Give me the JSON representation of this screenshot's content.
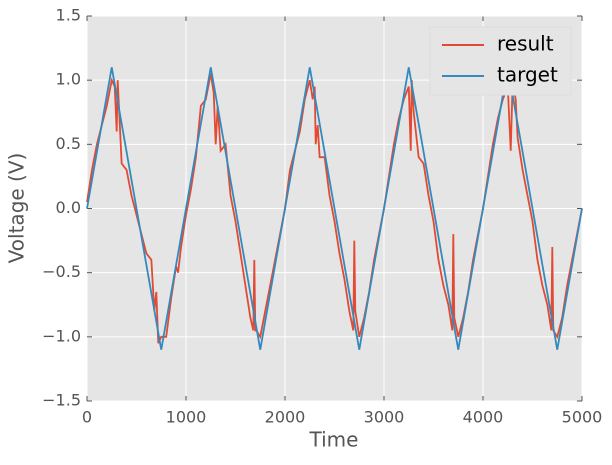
{
  "chart_data": {
    "type": "line",
    "xlabel": "Time",
    "ylabel": "Voltage (V)",
    "xlim": [
      0,
      5000
    ],
    "ylim": [
      -1.5,
      1.5
    ],
    "xticks": [
      0,
      1000,
      2000,
      3000,
      4000,
      5000
    ],
    "yticks": [
      {
        "value": -1.5,
        "label": "−1.5"
      },
      {
        "value": -1.0,
        "label": "−1.0"
      },
      {
        "value": -0.5,
        "label": "−0.5"
      },
      {
        "value": 0.0,
        "label": "0.0"
      },
      {
        "value": 0.5,
        "label": "0.5"
      },
      {
        "value": 1.0,
        "label": "1.0"
      },
      {
        "value": 1.5,
        "label": "1.5"
      }
    ],
    "grid": true,
    "legend": "upper right",
    "series": [
      {
        "name": "result",
        "color": "#e24a33",
        "x": [
          0,
          50,
          100,
          150,
          200,
          250,
          280,
          300,
          310,
          350,
          400,
          450,
          500,
          550,
          600,
          650,
          680,
          700,
          720,
          750,
          800,
          850,
          900,
          920,
          950,
          1000,
          1050,
          1100,
          1150,
          1200,
          1250,
          1280,
          1300,
          1320,
          1350,
          1400,
          1450,
          1500,
          1550,
          1600,
          1650,
          1680,
          1690,
          1700,
          1710,
          1750,
          1800,
          1850,
          1900,
          1950,
          2000,
          2050,
          2100,
          2150,
          2200,
          2250,
          2280,
          2300,
          2310,
          2330,
          2350,
          2400,
          2450,
          2500,
          2550,
          2600,
          2650,
          2690,
          2700,
          2710,
          2750,
          2800,
          2850,
          2900,
          2950,
          3000,
          3050,
          3100,
          3150,
          3200,
          3250,
          3270,
          3280,
          3300,
          3350,
          3400,
          3450,
          3500,
          3550,
          3600,
          3650,
          3690,
          3700,
          3710,
          3750,
          3800,
          3850,
          3900,
          3950,
          4000,
          4050,
          4100,
          4150,
          4200,
          4250,
          4280,
          4300,
          4330,
          4350,
          4400,
          4450,
          4500,
          4550,
          4600,
          4650,
          4690,
          4700,
          4710,
          4750,
          4800,
          4850,
          4900,
          4950,
          5000
        ],
        "values": [
          0.05,
          0.3,
          0.5,
          0.65,
          0.8,
          1.0,
          0.95,
          0.6,
          1.0,
          0.35,
          0.3,
          0.1,
          -0.05,
          -0.2,
          -0.35,
          -0.4,
          -0.8,
          -0.65,
          -1.05,
          -1.0,
          -1.0,
          -0.7,
          -0.45,
          -0.5,
          -0.3,
          -0.05,
          0.15,
          0.4,
          0.8,
          0.85,
          1.05,
          0.9,
          0.5,
          0.8,
          0.45,
          0.5,
          0.1,
          -0.1,
          -0.35,
          -0.6,
          -0.85,
          -0.95,
          -0.4,
          -0.95,
          -0.95,
          -1.0,
          -0.8,
          -0.6,
          -0.4,
          -0.2,
          0.0,
          0.3,
          0.45,
          0.6,
          0.85,
          1.0,
          0.85,
          0.95,
          0.5,
          0.65,
          0.4,
          0.4,
          0.1,
          -0.1,
          -0.35,
          -0.55,
          -0.8,
          -0.95,
          -0.25,
          -0.8,
          -1.0,
          -0.85,
          -0.65,
          -0.4,
          -0.2,
          0.0,
          0.25,
          0.5,
          0.7,
          0.85,
          0.95,
          0.45,
          1.0,
          0.75,
          0.4,
          0.35,
          0.1,
          -0.1,
          -0.4,
          -0.6,
          -0.75,
          -0.95,
          -0.2,
          -0.85,
          -1.0,
          -0.85,
          -0.65,
          -0.4,
          -0.2,
          0.0,
          0.25,
          0.5,
          0.7,
          0.85,
          0.95,
          0.45,
          1.0,
          0.85,
          0.55,
          0.3,
          0.1,
          -0.1,
          -0.4,
          -0.6,
          -0.75,
          -0.95,
          -0.3,
          -0.95,
          -1.0,
          -0.85,
          -0.6,
          -0.4,
          -0.2,
          0.0
        ]
      },
      {
        "name": "target",
        "color": "#348abd",
        "x": [
          0,
          250,
          750,
          1250,
          1750,
          2250,
          2750,
          3250,
          3750,
          4250,
          4750,
          5000
        ],
        "values": [
          0,
          1.1,
          -1.1,
          1.1,
          -1.1,
          1.1,
          -1.1,
          1.1,
          -1.1,
          1.1,
          -1.1,
          0
        ]
      }
    ]
  }
}
